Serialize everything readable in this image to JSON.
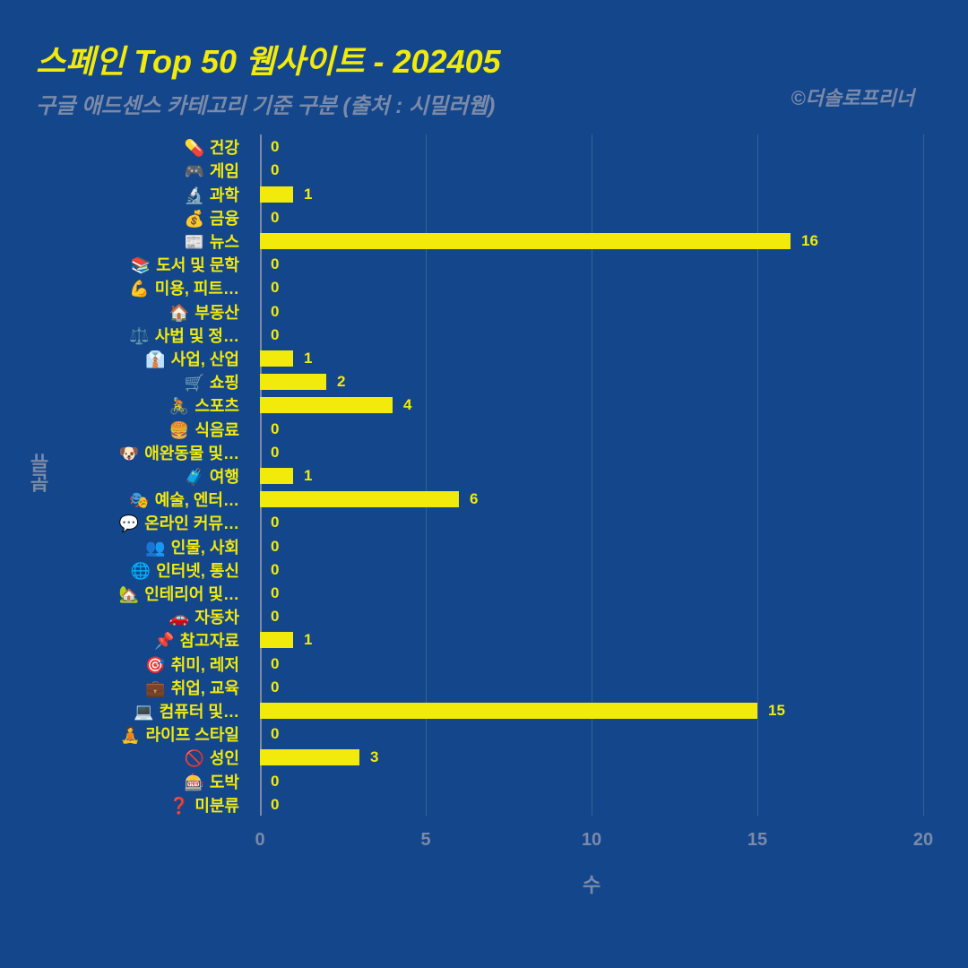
{
  "chart": {
    "type": "bar-horizontal",
    "title": "스페인 Top 50 웹사이트 - 202405",
    "subtitle": "구글 애드센스 카테고리 기준 구분 (출처 : 시밀러웹)",
    "credit": "©더솔로프리너",
    "x_axis_label": "수",
    "y_axis_label": "분류",
    "background_color": "#14468c",
    "title_color": "#f2ea0a",
    "subtitle_color": "#7a8aa8",
    "credit_color": "#7a8aa8",
    "bar_color": "#f2ea0a",
    "value_label_color": "#f2ea0a",
    "category_label_color": "#f2ea0a",
    "gridline_color": "#3a6090",
    "baseline_color": "#7a8aa8",
    "tick_color": "#7a8aa8",
    "axis_label_color": "#7a8aa8",
    "xlim": [
      0,
      20
    ],
    "xtick_step": 5,
    "xticks": [
      0,
      5,
      10,
      15,
      20
    ],
    "title_fontsize": 36,
    "subtitle_fontsize": 24,
    "label_fontsize": 18,
    "value_fontsize": 17,
    "tick_fontsize": 20,
    "categories": [
      {
        "emoji": "💊",
        "label": "건강",
        "value": 0
      },
      {
        "emoji": "🎮",
        "label": "게임",
        "value": 0
      },
      {
        "emoji": "🔬",
        "label": "과학",
        "value": 1
      },
      {
        "emoji": "💰",
        "label": "금융",
        "value": 0
      },
      {
        "emoji": "📰",
        "label": "뉴스",
        "value": 16
      },
      {
        "emoji": "📚",
        "label": "도서 및 문학",
        "value": 0
      },
      {
        "emoji": "💪",
        "label": "미용, 피트…",
        "value": 0
      },
      {
        "emoji": "🏠",
        "label": "부동산",
        "value": 0
      },
      {
        "emoji": "⚖️",
        "label": "사법 및 정…",
        "value": 0
      },
      {
        "emoji": "👔",
        "label": "사업, 산업",
        "value": 1
      },
      {
        "emoji": "🛒",
        "label": "쇼핑",
        "value": 2
      },
      {
        "emoji": "🚴",
        "label": "스포츠",
        "value": 4
      },
      {
        "emoji": "🍔",
        "label": "식음료",
        "value": 0
      },
      {
        "emoji": "🐶",
        "label": "애완동물 및…",
        "value": 0
      },
      {
        "emoji": "🧳",
        "label": "여행",
        "value": 1
      },
      {
        "emoji": "🎭",
        "label": "예술, 엔터…",
        "value": 6
      },
      {
        "emoji": "💬",
        "label": "온라인 커뮤…",
        "value": 0
      },
      {
        "emoji": "👥",
        "label": "인물, 사회",
        "value": 0
      },
      {
        "emoji": "🌐",
        "label": "인터넷, 통신",
        "value": 0
      },
      {
        "emoji": "🏡",
        "label": "인테리어 및…",
        "value": 0
      },
      {
        "emoji": "🚗",
        "label": "자동차",
        "value": 0
      },
      {
        "emoji": "📌",
        "label": "참고자료",
        "value": 1
      },
      {
        "emoji": "🎯",
        "label": "취미, 레저",
        "value": 0
      },
      {
        "emoji": "💼",
        "label": "취업, 교육",
        "value": 0
      },
      {
        "emoji": "💻",
        "label": "컴퓨터 및…",
        "value": 15
      },
      {
        "emoji": "🧘",
        "label": "라이프 스타일",
        "value": 0
      },
      {
        "emoji": "🚫",
        "label": "성인",
        "value": 3
      },
      {
        "emoji": "🎰",
        "label": "도박",
        "value": 0
      },
      {
        "emoji": "❓",
        "label": "미분류",
        "value": 0
      }
    ]
  }
}
